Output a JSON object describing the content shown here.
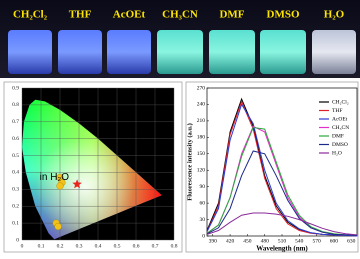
{
  "photo": {
    "labels": [
      "CH₂Cl₂",
      "THF",
      "AcOEt",
      "CH₃CN",
      "DMF",
      "DMSO",
      "H₂O"
    ]
  },
  "chart_data": [
    {
      "type": "scatter",
      "xlim": [
        0,
        0.8
      ],
      "xticks": [
        0,
        0.1,
        0.2,
        0.3,
        0.4,
        0.5,
        0.6,
        0.7,
        0.8
      ],
      "ylim": [
        0,
        0.9
      ],
      "yticks": [
        0,
        0.1,
        0.2,
        0.3,
        0.4,
        0.5,
        0.6,
        0.7,
        0.8,
        0.9
      ],
      "grid": true,
      "series": [
        {
          "color": "#f2c21b",
          "x": [
            0.2,
            0.21,
            0.2,
            0.18,
            0.19
          ],
          "values": [
            0.37,
            0.34,
            0.32,
            0.1,
            0.08
          ]
        },
        {
          "name": "in H₂O",
          "color": "#e8261d",
          "x": [
            0.29
          ],
          "values": [
            0.33
          ]
        }
      ]
    },
    {
      "type": "line",
      "xlabel": "Wavelength (nm)",
      "ylabel": "Fluorescence intensity (a.u.)",
      "xlim": [
        380,
        640
      ],
      "xticks": [
        390,
        420,
        450,
        480,
        510,
        540,
        570,
        600,
        630
      ],
      "ylim": [
        0,
        270
      ],
      "yticks": [
        0,
        30,
        60,
        90,
        120,
        150,
        180,
        210,
        240,
        270
      ],
      "legend": "upper right",
      "x": [
        380,
        400,
        420,
        440,
        460,
        480,
        500,
        520,
        540,
        560,
        580,
        600,
        620,
        640
      ],
      "series": [
        {
          "name": "CH₂Cl₂",
          "color": "#000000",
          "values": [
            10,
            60,
            190,
            250,
            200,
            110,
            55,
            25,
            12,
            6,
            3,
            2,
            1,
            0
          ]
        },
        {
          "name": "THF",
          "color": "#e0202a",
          "values": [
            8,
            55,
            185,
            245,
            195,
            105,
            50,
            22,
            10,
            5,
            3,
            2,
            1,
            0
          ]
        },
        {
          "name": "AcOEt",
          "color": "#2a3cd6",
          "values": [
            8,
            50,
            175,
            240,
            205,
            120,
            60,
            28,
            13,
            6,
            3,
            2,
            1,
            0
          ]
        },
        {
          "name": "CH₃CN",
          "color": "#e032c8",
          "values": [
            5,
            20,
            70,
            150,
            200,
            190,
            130,
            70,
            35,
            15,
            7,
            3,
            2,
            1
          ]
        },
        {
          "name": "DMF",
          "color": "#2aa83a",
          "values": [
            5,
            20,
            70,
            145,
            198,
            195,
            135,
            75,
            38,
            17,
            8,
            4,
            2,
            1
          ]
        },
        {
          "name": "DMSO",
          "color": "#1a2a8a",
          "values": [
            4,
            15,
            50,
            110,
            155,
            150,
            110,
            65,
            32,
            15,
            7,
            3,
            2,
            1
          ]
        },
        {
          "name": "H₂O",
          "color": "#8a2a9a",
          "values": [
            3,
            10,
            25,
            38,
            42,
            42,
            40,
            36,
            30,
            22,
            14,
            8,
            4,
            2
          ]
        }
      ]
    }
  ]
}
